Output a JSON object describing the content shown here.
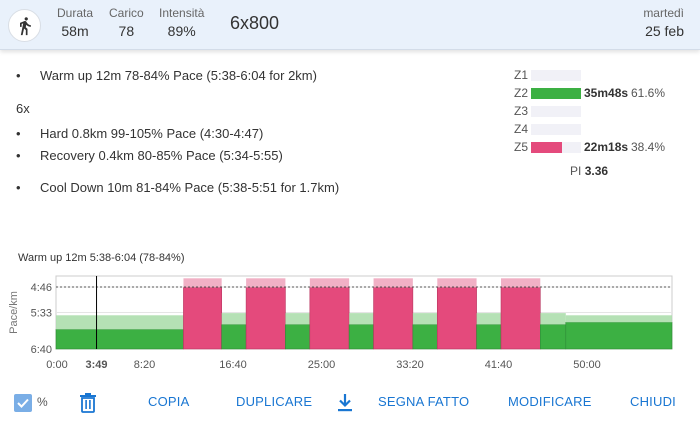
{
  "header": {
    "icon": "runner-icon",
    "stats": [
      {
        "label": "Durata",
        "value": "58m"
      },
      {
        "label": "Carico",
        "value": "78"
      },
      {
        "label": "Intensità",
        "value": "89%"
      }
    ],
    "title": "6x800",
    "day_of_week": "martedì",
    "date": "25 feb"
  },
  "steps": {
    "warmup": "Warm up 12m 78-84% Pace (5:38-6:04 for 2km)",
    "repeat": "6x",
    "hard": "Hard 0.8km 99-105% Pace (4:30-4:47)",
    "recovery": "Recovery 0.4km 80-85% Pace (5:34-5:55)",
    "cooldown": "Cool Down 10m 81-84% Pace (5:38-5:51 for 1.7km)"
  },
  "zones": [
    {
      "label": "Z1",
      "fraction": 0,
      "time": "",
      "percent": ""
    },
    {
      "label": "Z2",
      "fraction": 1.0,
      "time": "35m48s",
      "percent": "61.6%",
      "color": "#3cb043"
    },
    {
      "label": "Z3",
      "fraction": 0,
      "time": "",
      "percent": ""
    },
    {
      "label": "Z4",
      "fraction": 0,
      "time": "",
      "percent": ""
    },
    {
      "label": "Z5",
      "fraction": 0.62,
      "time": "22m18s",
      "percent": "38.4%",
      "color": "#e44a7c"
    }
  ],
  "pi": {
    "label": "PI",
    "value": "3.36"
  },
  "chart": {
    "hover_label": "Warm up 12m  5:38-6:04 (78-84%)",
    "ylabel": "Pace/km",
    "y_ticks": [
      "4:46",
      "5:33",
      "6:40"
    ],
    "x_ticks": [
      "0:00",
      "3:49",
      "8:20",
      "16:40",
      "25:00",
      "33:20",
      "41:40",
      "50:00"
    ],
    "cursor_time": "3:49",
    "colors": {
      "easy": "#3cb043",
      "easy_band": "#a8dca8",
      "hard": "#e44a7c",
      "hard_band": "#eea2bb"
    }
  },
  "chart_data": {
    "type": "bar",
    "xlabel": "",
    "ylabel": "Pace/km",
    "x_unit": "minutes",
    "x_range": [
      0,
      58
    ],
    "y_ticks": [
      "4:46",
      "5:33",
      "6:40"
    ],
    "segments": [
      {
        "name": "Warm up",
        "start": 0,
        "end": 12,
        "pace_min": "5:38",
        "pace_max": "6:04",
        "zone": "Z2"
      },
      {
        "name": "Hard",
        "start": 12,
        "end": 15.6,
        "pace_min": "4:30",
        "pace_max": "4:47",
        "zone": "Z5"
      },
      {
        "name": "Recovery",
        "start": 15.6,
        "end": 17.9,
        "pace_min": "5:34",
        "pace_max": "5:55",
        "zone": "Z2"
      },
      {
        "name": "Hard",
        "start": 17.9,
        "end": 21.6,
        "pace_min": "4:30",
        "pace_max": "4:47",
        "zone": "Z5"
      },
      {
        "name": "Recovery",
        "start": 21.6,
        "end": 23.9,
        "pace_min": "5:34",
        "pace_max": "5:55",
        "zone": "Z2"
      },
      {
        "name": "Hard",
        "start": 23.9,
        "end": 27.6,
        "pace_min": "4:30",
        "pace_max": "4:47",
        "zone": "Z5"
      },
      {
        "name": "Recovery",
        "start": 27.6,
        "end": 29.9,
        "pace_min": "5:34",
        "pace_max": "5:55",
        "zone": "Z2"
      },
      {
        "name": "Hard",
        "start": 29.9,
        "end": 33.6,
        "pace_min": "4:30",
        "pace_max": "4:47",
        "zone": "Z5"
      },
      {
        "name": "Recovery",
        "start": 33.6,
        "end": 35.9,
        "pace_min": "5:34",
        "pace_max": "5:55",
        "zone": "Z2"
      },
      {
        "name": "Hard",
        "start": 35.9,
        "end": 39.6,
        "pace_min": "4:30",
        "pace_max": "4:47",
        "zone": "Z5"
      },
      {
        "name": "Recovery",
        "start": 39.6,
        "end": 41.9,
        "pace_min": "5:34",
        "pace_max": "5:55",
        "zone": "Z2"
      },
      {
        "name": "Hard",
        "start": 41.9,
        "end": 45.6,
        "pace_min": "4:30",
        "pace_max": "4:47",
        "zone": "Z5"
      },
      {
        "name": "Recovery",
        "start": 45.6,
        "end": 48,
        "pace_min": "5:34",
        "pace_max": "5:55",
        "zone": "Z2"
      },
      {
        "name": "Cool Down",
        "start": 48,
        "end": 58,
        "pace_min": "5:38",
        "pace_max": "5:51",
        "zone": "Z2"
      }
    ],
    "threshold_line": "4:46",
    "grid": true
  },
  "actions": {
    "percent_toggle": "%",
    "copy": "COPIA",
    "duplicate": "DUPLICARE",
    "mark_done": "SEGNA FATTO",
    "edit": "MODIFICARE",
    "close": "CHIUDI"
  }
}
